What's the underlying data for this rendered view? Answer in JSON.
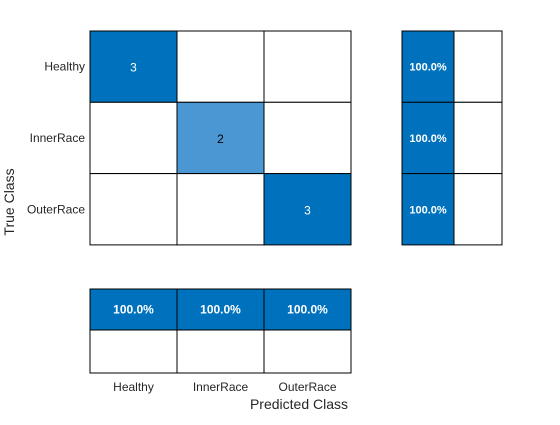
{
  "chart_data": {
    "type": "heatmap",
    "classes": [
      "Healthy",
      "InnerRace",
      "OuterRace"
    ],
    "matrix": [
      [
        3,
        0,
        0
      ],
      [
        0,
        2,
        0
      ],
      [
        0,
        0,
        3
      ]
    ],
    "row_summary": [
      "100.0%",
      "100.0%",
      "100.0%"
    ],
    "column_summary": [
      "100.0%",
      "100.0%",
      "100.0%"
    ],
    "xlabel": "Predicted Class",
    "ylabel": "True Class",
    "colors": {
      "dark": "#0072bd",
      "light": "#4a97d3",
      "empty": "#ffffff",
      "text_on_dark": "#ffffff",
      "text_on_light": "#000000",
      "axis_text": "#262626"
    }
  }
}
